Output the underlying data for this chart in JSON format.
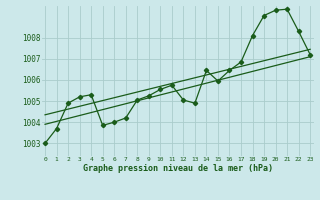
{
  "title": "Graphe pression niveau de la mer (hPa)",
  "background_color": "#cce8ea",
  "grid_color": "#aacccc",
  "line_color": "#1a5c1a",
  "y_ticks": [
    1003,
    1004,
    1005,
    1006,
    1007,
    1008
  ],
  "ylim": [
    1002.4,
    1009.5
  ],
  "xlim": [
    -0.3,
    23.3
  ],
  "series1_x": [
    0,
    1,
    2,
    3,
    4,
    5,
    6,
    7,
    8,
    9,
    10,
    11,
    12,
    13,
    14,
    15,
    16,
    17,
    18,
    19,
    20,
    21,
    22,
    23
  ],
  "series1_y": [
    1003.0,
    1003.7,
    1004.9,
    1005.2,
    1005.3,
    1003.85,
    1004.0,
    1004.2,
    1005.05,
    1005.25,
    1005.55,
    1005.75,
    1005.05,
    1004.9,
    1006.45,
    1005.95,
    1006.45,
    1006.85,
    1008.1,
    1009.05,
    1009.3,
    1009.35,
    1008.3,
    1007.2
  ],
  "trend1_x": [
    0,
    23
  ],
  "trend1_y": [
    1003.9,
    1007.1
  ],
  "trend2_x": [
    0,
    23
  ],
  "trend2_y": [
    1004.35,
    1007.45
  ]
}
